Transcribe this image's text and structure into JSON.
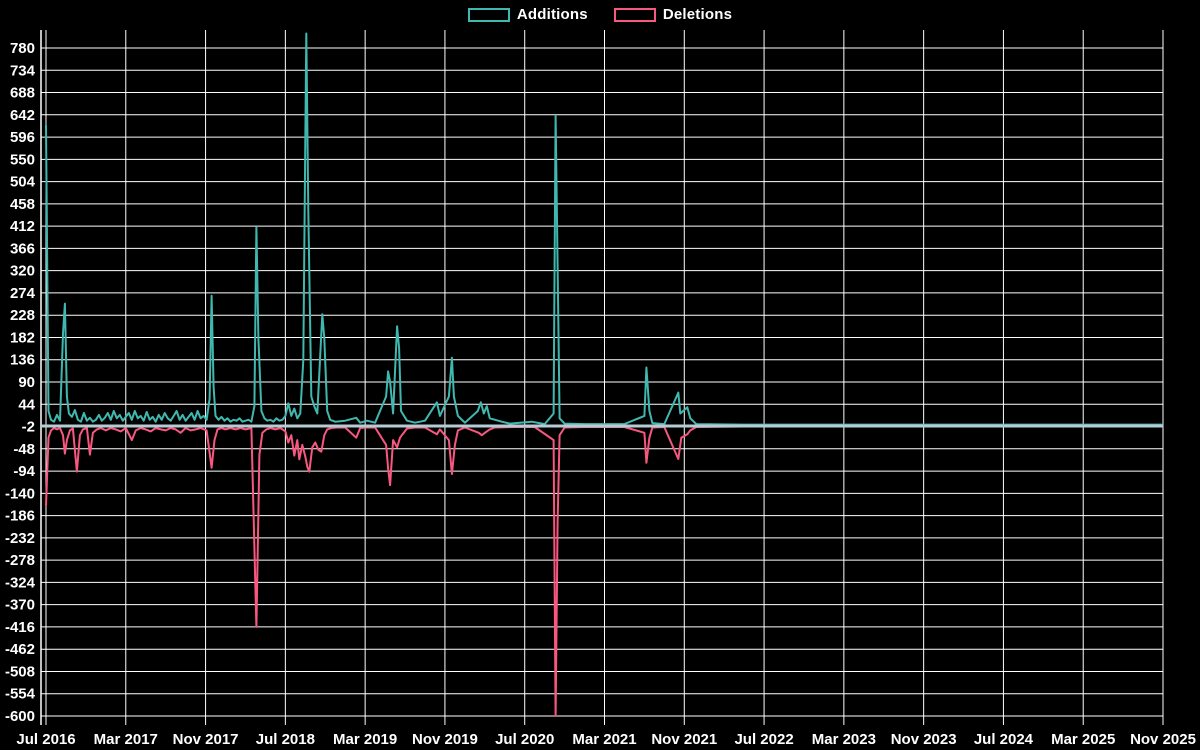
{
  "page": {
    "background": "#000000",
    "text_color": "#ffffff"
  },
  "legend": {
    "position": "top-center"
  },
  "chart_data": {
    "type": "line",
    "title": "",
    "xlabel": "",
    "ylabel": "",
    "grid": true,
    "legend_position": "top-center",
    "colors": {
      "additions": "#40b8b0",
      "deletions": "#f8587f",
      "zero_line": "#b6ccd4",
      "grid": "#ffffff",
      "background": "#000000",
      "text": "#ffffff"
    },
    "x_axis": {
      "unit": "months since Jul 2016",
      "range_months": [
        0,
        112
      ],
      "tick_interval_months": 8,
      "tick_labels": [
        "Jul 2016",
        "Mar 2017",
        "Nov 2017",
        "Jul 2018",
        "Mar 2019",
        "Nov 2019",
        "Jul 2020",
        "Mar 2021",
        "Nov 2021",
        "Jul 2022",
        "Mar 2023",
        "Nov 2023",
        "Jul 2024",
        "Mar 2025",
        "Nov 2025"
      ]
    },
    "y_axis": {
      "range": [
        -600,
        780
      ],
      "tick_step": 46,
      "tick_values": [
        780,
        734,
        688,
        642,
        596,
        550,
        504,
        458,
        412,
        366,
        320,
        274,
        228,
        182,
        136,
        90,
        44,
        -2,
        -48,
        -94,
        -140,
        -186,
        -232,
        -278,
        -324,
        -370,
        -416,
        -462,
        -508,
        -554,
        -600
      ]
    },
    "zero_line_value": -1,
    "series": [
      {
        "name": "Additions",
        "color_key": "additions",
        "points": [
          [
            0,
            620
          ],
          [
            0.25,
            30
          ],
          [
            0.5,
            12
          ],
          [
            0.8,
            8
          ],
          [
            1.1,
            22
          ],
          [
            1.4,
            10
          ],
          [
            1.7,
            190
          ],
          [
            1.9,
            252
          ],
          [
            2.1,
            60
          ],
          [
            2.3,
            25
          ],
          [
            2.6,
            18
          ],
          [
            2.9,
            32
          ],
          [
            3.2,
            12
          ],
          [
            3.5,
            8
          ],
          [
            3.8,
            26
          ],
          [
            4.1,
            10
          ],
          [
            4.4,
            16
          ],
          [
            4.7,
            8
          ],
          [
            5.0,
            12
          ],
          [
            5.3,
            22
          ],
          [
            5.6,
            10
          ],
          [
            5.9,
            16
          ],
          [
            6.2,
            26
          ],
          [
            6.5,
            12
          ],
          [
            6.8,
            30
          ],
          [
            7.1,
            15
          ],
          [
            7.4,
            22
          ],
          [
            7.7,
            10
          ],
          [
            8.0,
            18
          ],
          [
            8.3,
            26
          ],
          [
            8.6,
            12
          ],
          [
            8.9,
            30
          ],
          [
            9.2,
            15
          ],
          [
            9.5,
            20
          ],
          [
            9.8,
            10
          ],
          [
            10.1,
            28
          ],
          [
            10.4,
            12
          ],
          [
            10.7,
            18
          ],
          [
            11.0,
            8
          ],
          [
            11.3,
            22
          ],
          [
            11.6,
            12
          ],
          [
            11.9,
            26
          ],
          [
            12.2,
            15
          ],
          [
            12.5,
            10
          ],
          [
            12.8,
            20
          ],
          [
            13.1,
            30
          ],
          [
            13.4,
            12
          ],
          [
            13.7,
            22
          ],
          [
            14.0,
            10
          ],
          [
            14.3,
            18
          ],
          [
            14.6,
            26
          ],
          [
            14.9,
            12
          ],
          [
            15.2,
            30
          ],
          [
            15.5,
            15
          ],
          [
            15.8,
            20
          ],
          [
            16.1,
            12
          ],
          [
            16.4,
            55
          ],
          [
            16.6,
            268
          ],
          [
            16.8,
            80
          ],
          [
            17.0,
            20
          ],
          [
            17.3,
            12
          ],
          [
            17.6,
            18
          ],
          [
            17.9,
            10
          ],
          [
            18.2,
            15
          ],
          [
            18.5,
            8
          ],
          [
            18.8,
            12
          ],
          [
            19.1,
            10
          ],
          [
            19.4,
            15
          ],
          [
            19.7,
            8
          ],
          [
            20.0,
            10
          ],
          [
            20.3,
            12
          ],
          [
            20.6,
            8
          ],
          [
            20.9,
            40
          ],
          [
            21.1,
            410
          ],
          [
            21.3,
            180
          ],
          [
            21.6,
            30
          ],
          [
            21.9,
            15
          ],
          [
            22.2,
            10
          ],
          [
            22.5,
            12
          ],
          [
            22.8,
            8
          ],
          [
            23.1,
            15
          ],
          [
            23.4,
            10
          ],
          [
            23.7,
            12
          ],
          [
            24.0,
            20
          ],
          [
            24.3,
            46
          ],
          [
            24.6,
            20
          ],
          [
            24.9,
            35
          ],
          [
            25.2,
            15
          ],
          [
            25.5,
            25
          ],
          [
            25.8,
            135
          ],
          [
            26.1,
            810
          ],
          [
            26.3,
            445
          ],
          [
            26.6,
            60
          ],
          [
            26.9,
            40
          ],
          [
            27.2,
            25
          ],
          [
            27.7,
            230
          ],
          [
            27.9,
            180
          ],
          [
            28.2,
            30
          ],
          [
            28.5,
            12
          ],
          [
            29,
            8
          ],
          [
            30,
            10
          ],
          [
            31.1,
            16
          ],
          [
            31.5,
            6
          ],
          [
            32.2,
            10
          ],
          [
            33,
            6
          ],
          [
            34.1,
            60
          ],
          [
            34.3,
            112
          ],
          [
            34.5,
            90
          ],
          [
            34.8,
            25
          ],
          [
            35.2,
            205
          ],
          [
            35.4,
            160
          ],
          [
            35.6,
            30
          ],
          [
            36.2,
            10
          ],
          [
            37,
            6
          ],
          [
            38,
            10
          ],
          [
            39.2,
            48
          ],
          [
            39.5,
            20
          ],
          [
            40.4,
            60
          ],
          [
            40.7,
            140
          ],
          [
            40.9,
            60
          ],
          [
            41.3,
            20
          ],
          [
            42,
            6
          ],
          [
            43.3,
            30
          ],
          [
            43.6,
            48
          ],
          [
            43.9,
            25
          ],
          [
            44.2,
            40
          ],
          [
            44.5,
            15
          ],
          [
            45.7,
            8
          ],
          [
            46.5,
            4
          ],
          [
            48.7,
            8
          ],
          [
            50,
            3
          ],
          [
            50.9,
            25
          ],
          [
            51.1,
            640
          ],
          [
            51.3,
            330
          ],
          [
            51.5,
            15
          ],
          [
            52,
            4
          ],
          [
            54,
            3
          ],
          [
            56,
            3
          ],
          [
            58,
            3
          ],
          [
            60.0,
            20
          ],
          [
            60.2,
            120
          ],
          [
            60.5,
            30
          ],
          [
            60.8,
            5
          ],
          [
            62,
            3
          ],
          [
            63.4,
            68
          ],
          [
            63.6,
            25
          ],
          [
            64.3,
            38
          ],
          [
            64.6,
            15
          ],
          [
            65.2,
            3
          ],
          [
            70,
            2
          ],
          [
            80,
            2
          ],
          [
            90,
            2
          ],
          [
            100,
            2
          ],
          [
            112,
            2
          ]
        ]
      },
      {
        "name": "Deletions",
        "color_key": "deletions",
        "points": [
          [
            0,
            -165
          ],
          [
            0.25,
            -25
          ],
          [
            0.5,
            -10
          ],
          [
            0.8,
            -5
          ],
          [
            1.1,
            -8
          ],
          [
            1.4,
            -5
          ],
          [
            1.7,
            -20
          ],
          [
            1.9,
            -58
          ],
          [
            2.1,
            -30
          ],
          [
            2.4,
            -10
          ],
          [
            2.7,
            -6
          ],
          [
            3.1,
            -95
          ],
          [
            3.4,
            -20
          ],
          [
            3.7,
            -8
          ],
          [
            4.1,
            -5
          ],
          [
            4.4,
            -60
          ],
          [
            4.7,
            -15
          ],
          [
            5.1,
            -8
          ],
          [
            5.5,
            -5
          ],
          [
            6,
            -10
          ],
          [
            6.5,
            -5
          ],
          [
            7,
            -8
          ],
          [
            7.5,
            -12
          ],
          [
            8,
            -5
          ],
          [
            8.6,
            -30
          ],
          [
            9,
            -10
          ],
          [
            9.5,
            -5
          ],
          [
            10,
            -8
          ],
          [
            10.5,
            -12
          ],
          [
            11,
            -5
          ],
          [
            11.5,
            -8
          ],
          [
            12,
            -10
          ],
          [
            12.5,
            -5
          ],
          [
            13,
            -8
          ],
          [
            13.5,
            -15
          ],
          [
            14,
            -5
          ],
          [
            14.5,
            -10
          ],
          [
            15,
            -8
          ],
          [
            15.5,
            -5
          ],
          [
            16.1,
            -10
          ],
          [
            16.6,
            -87
          ],
          [
            16.9,
            -30
          ],
          [
            17.2,
            -8
          ],
          [
            17.6,
            -5
          ],
          [
            18,
            -8
          ],
          [
            18.5,
            -5
          ],
          [
            19,
            -8
          ],
          [
            19.5,
            -5
          ],
          [
            20,
            -8
          ],
          [
            20.6,
            -5
          ],
          [
            21.1,
            -416
          ],
          [
            21.4,
            -60
          ],
          [
            21.7,
            -15
          ],
          [
            22.1,
            -8
          ],
          [
            22.5,
            -5
          ],
          [
            23,
            -8
          ],
          [
            23.5,
            -5
          ],
          [
            24,
            -12
          ],
          [
            24.3,
            -35
          ],
          [
            24.6,
            -20
          ],
          [
            24.9,
            -62
          ],
          [
            25.2,
            -30
          ],
          [
            25.4,
            -70
          ],
          [
            25.7,
            -40
          ],
          [
            26.0,
            -64
          ],
          [
            26.2,
            -85
          ],
          [
            26.4,
            -95
          ],
          [
            26.7,
            -45
          ],
          [
            27.0,
            -35
          ],
          [
            27.3,
            -50
          ],
          [
            27.6,
            -54
          ],
          [
            27.9,
            -20
          ],
          [
            28.2,
            -8
          ],
          [
            28.6,
            -5
          ],
          [
            29.2,
            -4
          ],
          [
            30,
            -4
          ],
          [
            31.1,
            -25
          ],
          [
            31.5,
            -5
          ],
          [
            32.2,
            -4
          ],
          [
            33,
            -4
          ],
          [
            34.1,
            -40
          ],
          [
            34.3,
            -88
          ],
          [
            34.5,
            -123
          ],
          [
            34.8,
            -30
          ],
          [
            35.2,
            -45
          ],
          [
            35.5,
            -25
          ],
          [
            36.2,
            -6
          ],
          [
            37,
            -4
          ],
          [
            38,
            -4
          ],
          [
            39.2,
            -18
          ],
          [
            39.5,
            -8
          ],
          [
            40.4,
            -30
          ],
          [
            40.7,
            -100
          ],
          [
            41.0,
            -40
          ],
          [
            41.3,
            -10
          ],
          [
            42,
            -4
          ],
          [
            43.4,
            -15
          ],
          [
            43.7,
            -20
          ],
          [
            44.2,
            -12
          ],
          [
            44.5,
            -8
          ],
          [
            45,
            -4
          ],
          [
            47,
            -3
          ],
          [
            49,
            -3
          ],
          [
            50.9,
            -30
          ],
          [
            51.1,
            -600
          ],
          [
            51.3,
            -200
          ],
          [
            51.5,
            -20
          ],
          [
            52,
            -4
          ],
          [
            54,
            -3
          ],
          [
            56,
            -3
          ],
          [
            58,
            -3
          ],
          [
            60.0,
            -15
          ],
          [
            60.2,
            -77
          ],
          [
            60.5,
            -25
          ],
          [
            60.8,
            -4
          ],
          [
            62,
            -3
          ],
          [
            63.4,
            -69
          ],
          [
            63.7,
            -25
          ],
          [
            64.3,
            -18
          ],
          [
            64.6,
            -10
          ],
          [
            65.2,
            -3
          ],
          [
            70,
            -2
          ],
          [
            80,
            -2
          ],
          [
            90,
            -2
          ],
          [
            100,
            -2
          ],
          [
            112,
            -2
          ]
        ]
      }
    ]
  }
}
